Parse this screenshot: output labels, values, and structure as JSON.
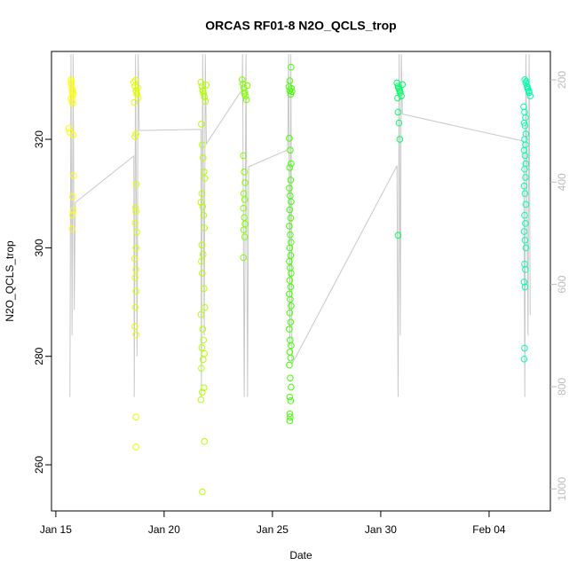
{
  "chart_data": {
    "type": "scatter",
    "title": "ORCAS RF01-8 N2O_QCLS_trop",
    "x_label": "Date",
    "y_label": "N2O_QCLS_trop",
    "xlim": [
      14.8,
      37.83
    ],
    "xticks": [
      {
        "value": 15,
        "label": "Jan 15"
      },
      {
        "value": 20,
        "label": "Jan 20"
      },
      {
        "value": 25,
        "label": "Jan 25"
      },
      {
        "value": 30,
        "label": "Jan 30"
      },
      {
        "value": 35,
        "label": "Feb 04"
      }
    ],
    "ylim": [
      251.5,
      336.2
    ],
    "yticks": [
      260,
      280,
      300,
      320
    ],
    "y2lim": [
      1043,
      144.5
    ],
    "y2ticks": [
      200,
      400,
      600,
      800,
      1000
    ],
    "series": [
      {
        "axis": "y2",
        "color": "#c8c8c8",
        "x": [
          15.65,
          15.7,
          15.75,
          15.8,
          15.85,
          15.9,
          18.6,
          18.62,
          18.68,
          18.75,
          18.8,
          18.85,
          21.7,
          21.72,
          21.78,
          21.85,
          21.9,
          21.95,
          23.6,
          23.62,
          23.7,
          23.78,
          23.85,
          23.9,
          25.7,
          25.75,
          25.8,
          25.85,
          25.9,
          30.75,
          30.8,
          30.85,
          30.9,
          30.95,
          31.0,
          36.6,
          36.65,
          36.7,
          36.8,
          36.85,
          36.9
        ],
        "values": [
          820,
          150,
          700,
          150,
          650,
          440,
          349,
          820,
          150,
          740,
          150,
          299,
          297,
          820,
          150,
          700,
          150,
          325,
          219,
          150,
          820,
          150,
          820,
          370,
          337,
          150,
          720,
          150,
          756,
          368,
          820,
          150,
          700,
          150,
          267,
          320,
          820,
          150,
          700,
          150,
          660
        ]
      },
      {
        "color": "#ffff00",
        "x": [
          15.7,
          15.72,
          15.74,
          15.76,
          15.78,
          15.7,
          15.74,
          15.78,
          15.72,
          15.76,
          15.6,
          15.65,
          15.8,
          15.82,
          15.78,
          15.8,
          15.77,
          15.75,
          15.79
        ],
        "values": [
          331,
          330.2,
          329.5,
          328.8,
          328,
          327.5,
          327,
          326.6,
          330.6,
          329.1,
          322,
          321.3,
          320.8,
          313.3,
          309.4,
          306.9,
          306,
          303.5,
          328.4
        ]
      },
      {
        "color": "#e0ff00",
        "x": [
          18.6,
          18.65,
          18.7,
          18.75,
          18.8,
          18.62,
          18.68,
          18.72,
          18.78,
          18.7,
          18.65,
          18.72,
          18.68,
          18.7,
          18.66,
          18.74,
          18.7,
          18.64,
          18.7,
          18.66,
          18.7,
          18.68,
          18.65,
          18.7,
          18.7,
          18.7
        ],
        "values": [
          330.5,
          329.8,
          329,
          328.3,
          327.6,
          326.8,
          330.9,
          328.7,
          329.5,
          321,
          320.5,
          311.7,
          307.4,
          306.7,
          304.6,
          302.9,
          300,
          298,
          296,
          294.5,
          292,
          289,
          285.5,
          284,
          268.8,
          263.3
        ]
      },
      {
        "color": "#b3ff00",
        "x": [
          21.7,
          21.74,
          21.78,
          21.82,
          21.86,
          21.9,
          21.94,
          21.8,
          21.72,
          21.76,
          21.8,
          21.84,
          21.88,
          21.74,
          21.7,
          21.78,
          21.82,
          21.86,
          21.74,
          21.8,
          21.72,
          21.76,
          21.84,
          21.88,
          21.7,
          21.78,
          21.82,
          21.74,
          21.86,
          21.8,
          21.72,
          21.84,
          21.76,
          21.7,
          21.86,
          21.76
        ],
        "values": [
          330.5,
          329.8,
          329,
          328.4,
          327.8,
          327,
          330,
          328.8,
          322.8,
          319,
          316.6,
          314,
          312.8,
          310,
          308.4,
          307.6,
          306,
          303.7,
          300.5,
          298.8,
          297.5,
          295.3,
          292.5,
          289,
          287.7,
          285,
          283,
          281.6,
          280.5,
          279.4,
          277.8,
          274.2,
          273.4,
          272,
          264.3,
          255
        ]
      },
      {
        "color": "#80ff00",
        "x": [
          23.6,
          23.64,
          23.68,
          23.72,
          23.76,
          23.8,
          23.84,
          23.7,
          23.66,
          23.7,
          23.74,
          23.68,
          23.72,
          23.66,
          23.7,
          23.74,
          23.68,
          23.72,
          23.66
        ],
        "values": [
          331,
          330.2,
          329.5,
          328.7,
          328,
          327.3,
          329.9,
          328.4,
          317,
          314,
          312,
          310,
          308.9,
          307.3,
          305.6,
          304.4,
          303.3,
          302,
          298.2
        ]
      },
      {
        "color": "#40ff00",
        "x": [
          25.76,
          25.8,
          25.84,
          25.88,
          25.9,
          25.86,
          25.8,
          25.78,
          25.82,
          25.86,
          25.8,
          25.84,
          25.78,
          25.82,
          25.86,
          25.8,
          25.84,
          25.78,
          25.82,
          25.86,
          25.8,
          25.84,
          25.78,
          25.82,
          25.86,
          25.8,
          25.84,
          25.78,
          25.82,
          25.86,
          25.8,
          25.84,
          25.78,
          25.82,
          25.86,
          25.8,
          25.84,
          25.78,
          25.82,
          25.86,
          25.8,
          25.84,
          25.8,
          25.82,
          25.8
        ],
        "values": [
          329.7,
          329,
          328.3,
          329.4,
          328.8,
          333.3,
          330.8,
          320.2,
          318,
          315.5,
          314.8,
          312.5,
          311,
          309.6,
          308.5,
          307,
          305.5,
          304,
          302.4,
          301,
          300,
          298.6,
          297.5,
          296.3,
          295.3,
          294,
          292.8,
          291.5,
          290.5,
          289.3,
          288,
          286.3,
          285,
          283,
          282,
          280.8,
          279.7,
          278.4,
          276,
          274.3,
          272.5,
          271.8,
          269.4,
          268.8,
          268.1
        ]
      },
      {
        "color": "#00ff66",
        "x": [
          30.75,
          30.8,
          30.85,
          30.9,
          30.95,
          31.0,
          30.82,
          30.88,
          30.78,
          30.8,
          30.84,
          30.88,
          30.8
        ],
        "values": [
          330.4,
          329.8,
          329.2,
          328.6,
          328,
          330.1,
          329.5,
          328.9,
          327.6,
          325,
          323,
          320,
          302.3
        ]
      },
      {
        "color": "#00ffaa",
        "x": [
          36.65,
          36.7,
          36.75,
          36.8,
          36.85,
          36.9,
          36.72,
          36.78,
          36.84,
          36.6,
          36.64,
          36.68,
          36.62,
          36.66,
          36.7,
          36.64,
          36.68,
          36.62,
          36.66,
          36.7,
          36.64,
          36.68,
          36.62,
          36.66,
          36.7,
          36.64,
          36.68,
          36.62,
          36.66,
          36.7,
          36.64,
          36.68,
          36.62,
          36.66,
          36.64,
          36.62
        ],
        "values": [
          331,
          330.4,
          329.8,
          329.2,
          328.6,
          328,
          330.7,
          329.5,
          328.9,
          326,
          325,
          324,
          323,
          322.5,
          321,
          320,
          319,
          318,
          317,
          315.5,
          314.5,
          313,
          311.4,
          310,
          308,
          306,
          304.5,
          303,
          301.4,
          300,
          297,
          296,
          293.7,
          292.8,
          281.5,
          279.5
        ]
      }
    ]
  }
}
